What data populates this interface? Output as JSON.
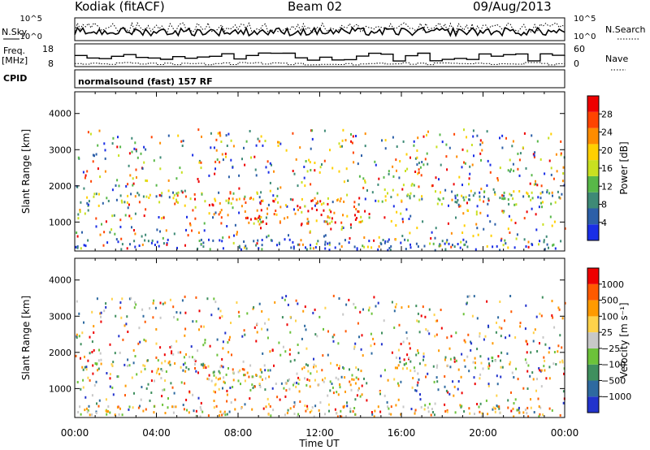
{
  "header": {
    "station": "Kodiak (fitACF)",
    "beam": "Beam 02",
    "date": "09/Aug/2013"
  },
  "top_panels": {
    "nsky_label": "N.Sky",
    "nsky_ticks": [
      "10^5",
      "10^0"
    ],
    "nsearch_label": "N.Search",
    "nsearch_ticks": [
      "10^5",
      "10^0"
    ],
    "freq_label": "Freq.",
    "freq_unit": "[MHz]",
    "freq_ticks": [
      "18",
      "8"
    ],
    "nave_label": "Nave",
    "nave_ticks": [
      "60",
      "0"
    ],
    "cpid_label": "CPID",
    "cpid_text": "normalsound (fast) 157 RF"
  },
  "colors": {
    "power_scale": [
      "#1a2ee6",
      "#2c5fa8",
      "#3e8a76",
      "#58b848",
      "#c8e020",
      "#ffd000",
      "#ff8c00",
      "#ff4400",
      "#ee0000"
    ],
    "velocity_scale": [
      "#2233cc",
      "#2e6aa0",
      "#3f8f5e",
      "#6cc23a",
      "#c8c8c8",
      "#ffd24a",
      "#ff9a00",
      "#ff5a00",
      "#ee0000"
    ]
  },
  "chart_data": [
    {
      "type": "heatmap",
      "name": "power",
      "xlabel": "Time UT",
      "ylabel": "Slant Range [km]",
      "x_ticks": [
        "00:00",
        "04:00",
        "08:00",
        "12:00",
        "16:00",
        "20:00",
        "00:00"
      ],
      "xlim_hours": [
        0,
        24
      ],
      "ylim": [
        200,
        4600
      ],
      "y_ticks": [
        1000,
        2000,
        3000,
        4000
      ],
      "colorbar_label": "Power [dB]",
      "colorbar_ticks": [
        "28",
        "24",
        "20",
        "16",
        "12",
        "8",
        "4"
      ],
      "bands": [
        {
          "start": 0.2,
          "end": 6.5,
          "range_min": 1550,
          "range_max": 1850,
          "level": 0.35
        },
        {
          "start": 6.5,
          "end": 14.0,
          "range_min": 950,
          "range_max": 1700,
          "level": 0.75
        },
        {
          "start": 8.0,
          "end": 9.5,
          "range_min": 950,
          "range_max": 1150,
          "level": 0.95
        },
        {
          "start": 15.5,
          "end": 24.0,
          "range_min": 1500,
          "range_max": 1900,
          "level": 0.4
        },
        {
          "start": 0.0,
          "end": 24.0,
          "range_min": 250,
          "range_max": 550,
          "level": 0.15
        }
      ]
    },
    {
      "type": "heatmap",
      "name": "velocity",
      "xlabel": "Time UT",
      "ylabel": "Slant Range [km]",
      "x_ticks": [
        "00:00",
        "04:00",
        "08:00",
        "12:00",
        "16:00",
        "20:00",
        "00:00"
      ],
      "xlim_hours": [
        0,
        24
      ],
      "ylim": [
        200,
        4600
      ],
      "y_ticks": [
        1000,
        2000,
        3000,
        4000
      ],
      "colorbar_label": "Velocity [m s⁻¹]",
      "colorbar_ticks": [
        "1000",
        "500",
        "100",
        "25",
        "−25",
        "−100",
        "−500",
        "−1000"
      ],
      "bands": [
        {
          "start": 0.2,
          "end": 6.5,
          "range_min": 1500,
          "range_max": 1850,
          "level": 0.5
        },
        {
          "start": 6.5,
          "end": 14.0,
          "range_min": 950,
          "range_max": 1700,
          "level": 0.55
        },
        {
          "start": 15.5,
          "end": 24.0,
          "range_min": 1550,
          "range_max": 1900,
          "level": 0.5
        },
        {
          "start": 0.0,
          "end": 24.0,
          "range_min": 250,
          "range_max": 550,
          "level": 0.6
        }
      ]
    }
  ]
}
